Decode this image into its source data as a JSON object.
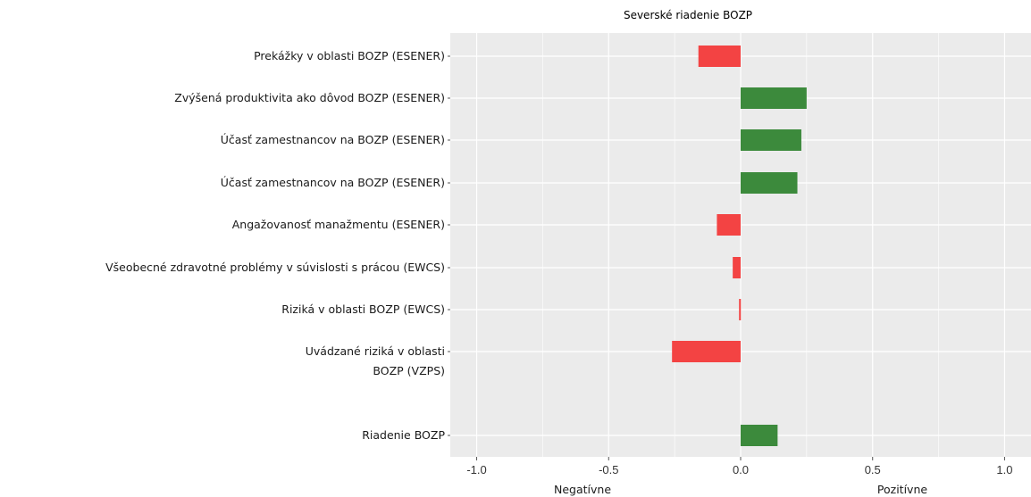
{
  "chart_data": {
    "type": "bar",
    "orientation": "horizontal",
    "title": "Severské riadenie BOZP",
    "categories": [
      "Prekážky v oblasti BOZP (ESENER)",
      "Zvýšená produktivita ako dôvod BOZP (ESENER)",
      "Účasť zamestnancov na BOZP (ESENER)",
      "Účasť zamestnancov na BOZP (ESENER)",
      "Angažovanosť manažmentu (ESENER)",
      "Všeobecné zdravotné problémy v súvislosti s prácou (EWCS)",
      "Riziká v oblasti BOZP (EWCS)",
      "Uvádzané riziká v oblasti BOZP (VZPS)",
      "Riadenie BOZP"
    ],
    "values": [
      -0.16,
      0.25,
      0.23,
      0.215,
      -0.09,
      -0.03,
      -0.006,
      -0.26,
      0.14
    ],
    "xlim": [
      -1.1,
      1.1
    ],
    "xticks": [
      "-1.0",
      "-0.5",
      "0.0",
      "0.5",
      "1.0"
    ],
    "xlabel_left": "Negatívne",
    "xlabel_right": "Pozitívne",
    "colors": {
      "negative": "#f34343",
      "positive": "#3c8a3c",
      "panel": "#ebebeb",
      "grid": "#ffffff"
    },
    "grid": true
  }
}
